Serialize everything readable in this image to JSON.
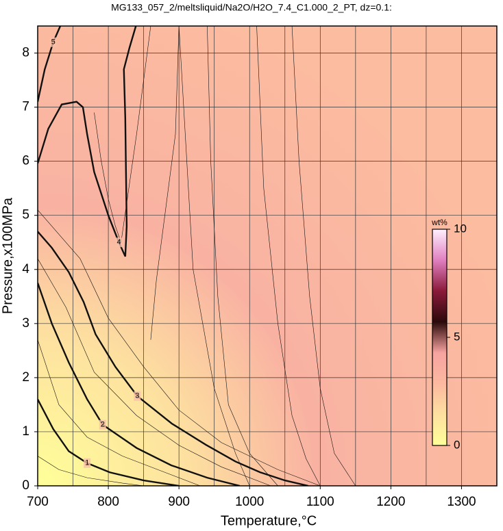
{
  "chart_data": {
    "type": "contour",
    "title": "MG133_057_2/meltsliquid/Na2O/H2O_7.4_C1.000_2_PT, dz=0.1:",
    "xlabel": "Temperature,°C",
    "ylabel": "Pressure,x100MPa",
    "xlim": [
      700,
      1350
    ],
    "ylim": [
      0,
      8.5
    ],
    "xticks": [
      700,
      800,
      900,
      1000,
      1100,
      1200,
      1300
    ],
    "yticks": [
      0,
      1,
      2,
      3,
      4,
      5,
      6,
      7,
      8
    ],
    "xgrid": [
      750,
      850,
      950,
      1050,
      1150,
      1250
    ],
    "grid": true,
    "colormap": [
      "#ffff99",
      "#fde0a0",
      "#fcb9a0",
      "#f6a3a0",
      "#2a0a0a",
      "#8a1a3a",
      "#e080c0",
      "#fff0ff"
    ],
    "clim": [
      0,
      10
    ],
    "cticks": [
      0,
      5,
      10
    ],
    "clabel": "wt%",
    "contours": [
      {
        "level": 1,
        "x": [
          700,
          722,
          744,
          770,
          802,
          850,
          900
        ],
        "y": [
          1.6,
          1.05,
          0.64,
          0.42,
          0.25,
          0.1,
          0
        ]
      },
      {
        "level": 2,
        "x": [
          700,
          720,
          744,
          770,
          792,
          840,
          889,
          940,
          986
        ],
        "y": [
          3.75,
          3.0,
          2.28,
          1.6,
          1.13,
          0.7,
          0.38,
          0.15,
          0
        ]
      },
      {
        "level": 3,
        "x": [
          700,
          720,
          744,
          765,
          782,
          810,
          841,
          890,
          938,
          980,
          1015,
          1050,
          1083
        ],
        "y": [
          4.7,
          4.4,
          3.95,
          3.4,
          2.8,
          2.2,
          1.66,
          1.15,
          0.76,
          0.45,
          0.25,
          0.1,
          0
        ]
      },
      {
        "level": 4,
        "x": [
          700,
          715,
          734,
          755,
          764,
          770,
          780,
          800,
          815,
          824,
          826,
          825,
          824,
          822,
          830,
          839
        ],
        "y": [
          5.96,
          6.6,
          7.05,
          7.1,
          7.0,
          6.5,
          5.8,
          5.0,
          4.5,
          4.24,
          4.8,
          5.8,
          6.8,
          7.7,
          8.1,
          8.5
        ]
      },
      {
        "level": 5,
        "x": [
          700,
          710,
          722,
          732
        ],
        "y": [
          7.1,
          7.7,
          8.2,
          8.5
        ]
      }
    ],
    "thin_contours": [
      {
        "level": 0.5,
        "x": [
          700,
          730,
          770,
          820,
          850
        ],
        "y": [
          0.55,
          0.3,
          0.15,
          0.05,
          0
        ]
      },
      {
        "level": 1.5,
        "x": [
          700,
          730,
          770,
          820,
          880,
          930
        ],
        "y": [
          2.7,
          1.5,
          0.9,
          0.55,
          0.25,
          0
        ]
      },
      {
        "level": 2.5,
        "x": [
          700,
          740,
          780,
          840,
          900,
          960,
          1030
        ],
        "y": [
          4.2,
          3.3,
          2.1,
          1.3,
          0.75,
          0.35,
          0
        ]
      },
      {
        "level": 3.5,
        "x": [
          700,
          760,
          800,
          850,
          900,
          960,
          1040,
          1100
        ],
        "y": [
          5.1,
          4.2,
          3.1,
          2.2,
          1.4,
          0.8,
          0.3,
          0
        ]
      },
      {
        "level": 3.8,
        "x": [
          860,
          868,
          880,
          895,
          900,
          920,
          950,
          980,
          1000
        ],
        "y": [
          2.7,
          3.8,
          5.0,
          6.5,
          8.5,
          4.0,
          1.8,
          0.6,
          0
        ]
      },
      {
        "level": 3.7,
        "x": [
          940,
          945,
          955,
          970,
          1000,
          1040
        ],
        "y": [
          8.5,
          6.0,
          3.5,
          1.5,
          0.6,
          0
        ]
      },
      {
        "level": 3.6,
        "x": [
          1010,
          1020,
          1040,
          1060,
          1080,
          1100
        ],
        "y": [
          8.5,
          5.5,
          3.0,
          1.3,
          0.5,
          0
        ]
      },
      {
        "level": 3.55,
        "x": [
          1060,
          1070,
          1085,
          1100,
          1120,
          1150
        ],
        "y": [
          8.5,
          6.0,
          3.5,
          1.8,
          0.6,
          0
        ]
      },
      {
        "level": 4.2,
        "x": [
          780,
          790,
          800,
          810,
          818,
          840,
          860
        ],
        "y": [
          6.9,
          6.0,
          5.3,
          4.8,
          4.5,
          6.5,
          8.5
        ]
      }
    ]
  }
}
